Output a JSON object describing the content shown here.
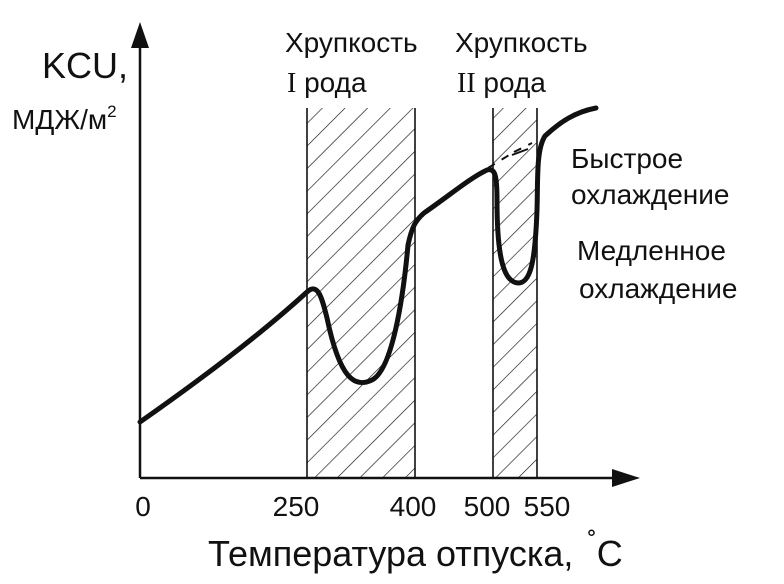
{
  "diagram": {
    "y_axis_label_line1": "KCU,",
    "y_axis_label_units": "МДЖ/м",
    "y_axis_label_exponent": "2",
    "x_axis_label": "Температура отпуска,",
    "x_axis_unit_degree": "˚",
    "x_axis_unit_letter": "С",
    "tick_labels": [
      "0",
      "250",
      "400",
      "500",
      "550"
    ],
    "zone1": {
      "line1": "Хрупкость",
      "roman": "I",
      "line2_rest": " рода"
    },
    "zone2": {
      "line1": "Хрупкость",
      "roman": "II",
      "line2_rest": " рода"
    },
    "fast_cooling": {
      "line1": "Быстрое",
      "line2": "охлаждение"
    },
    "slow_cooling": {
      "line1": "Медленное",
      "line2": "охлаждение"
    }
  }
}
